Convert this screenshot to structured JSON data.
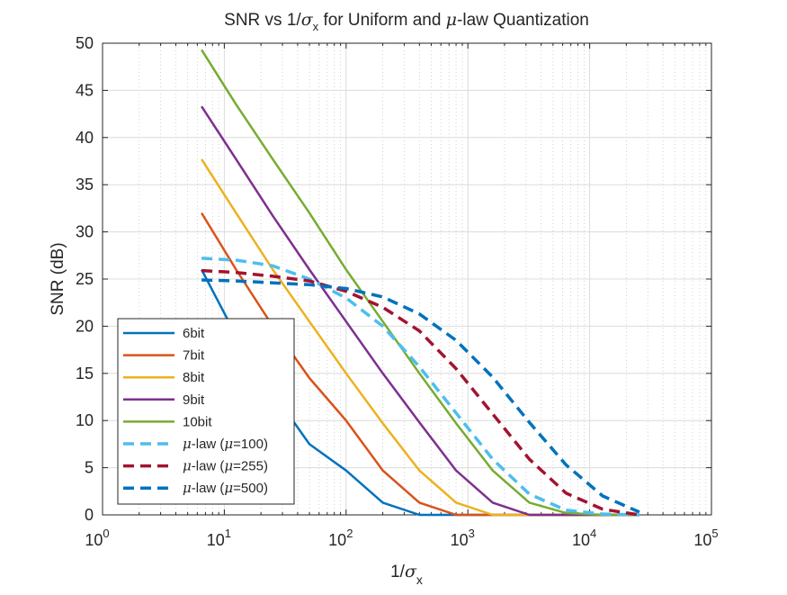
{
  "chart_data": {
    "type": "line",
    "title_parts": {
      "pre": "SNR vs 1/",
      "sigma": "σ",
      "sub": "x",
      "mid": " for Uniform and ",
      "mu": "μ",
      "post": "-law Quantization"
    },
    "xlabel_parts": {
      "pre": "1/",
      "sigma": "σ",
      "sub": "x"
    },
    "ylabel": "SNR (dB)",
    "xscale": "log",
    "xlim": [
      1,
      100000
    ],
    "ylim": [
      0,
      50
    ],
    "grid": true,
    "minor_grid": true,
    "legend_position": "lower-left",
    "x_ticks": [
      {
        "base": "10",
        "exp": "0"
      },
      {
        "base": "10",
        "exp": "1"
      },
      {
        "base": "10",
        "exp": "2"
      },
      {
        "base": "10",
        "exp": "3"
      },
      {
        "base": "10",
        "exp": "4"
      },
      {
        "base": "10",
        "exp": "5"
      }
    ],
    "y_ticks": [
      "0",
      "5",
      "10",
      "15",
      "20",
      "25",
      "30",
      "35",
      "40",
      "45",
      "50"
    ],
    "series": [
      {
        "label": "6bit",
        "color": "#0072BD",
        "dashed": false,
        "x": [
          6.5,
          12.5,
          25,
          50,
          100,
          200,
          400,
          800,
          1600,
          3200,
          6400,
          12800,
          25600
        ],
        "y": [
          26.0,
          19.0,
          13.0,
          7.5,
          4.7,
          1.3,
          0,
          0,
          0,
          0,
          0,
          0,
          0
        ]
      },
      {
        "label": "7bit",
        "color": "#D95319",
        "dashed": false,
        "x": [
          6.5,
          12.5,
          25,
          50,
          100,
          200,
          400,
          800,
          1600,
          3200,
          6400,
          12800,
          25600
        ],
        "y": [
          32.0,
          26.0,
          20.0,
          14.5,
          10.0,
          4.7,
          1.3,
          0,
          0,
          0,
          0,
          0,
          0
        ]
      },
      {
        "label": "8bit",
        "color": "#EDB120",
        "dashed": false,
        "x": [
          6.5,
          12.5,
          25,
          50,
          100,
          200,
          400,
          800,
          1600,
          3200,
          6400,
          12800,
          25600
        ],
        "y": [
          37.7,
          32.0,
          26.0,
          20.5,
          15.0,
          9.7,
          4.7,
          1.3,
          0,
          0,
          0,
          0,
          0
        ]
      },
      {
        "label": "9bit",
        "color": "#7E2F8E",
        "dashed": false,
        "x": [
          6.5,
          12.5,
          25,
          50,
          100,
          200,
          400,
          800,
          1600,
          3200,
          6400,
          12800,
          25600
        ],
        "y": [
          43.3,
          37.7,
          31.7,
          26.0,
          20.5,
          15.0,
          9.8,
          4.7,
          1.3,
          0,
          0,
          0,
          0
        ]
      },
      {
        "label": "10bit",
        "color": "#77AC30",
        "dashed": false,
        "x": [
          6.5,
          12.5,
          25,
          50,
          100,
          200,
          400,
          800,
          1600,
          3200,
          6400,
          12800,
          25600
        ],
        "y": [
          49.3,
          43.5,
          37.7,
          32.0,
          26.0,
          20.5,
          15.0,
          9.7,
          4.7,
          1.3,
          0.2,
          0,
          0
        ]
      },
      {
        "label": "μ-law (μ=100)",
        "label_pre": "-law (",
        "label_post": "=100)",
        "color": "#4DBEEE",
        "dashed": true,
        "x": [
          6.5,
          12.5,
          25,
          50,
          100,
          200,
          400,
          800,
          1600,
          3200,
          6400,
          12800,
          25600
        ],
        "y": [
          27.2,
          27.0,
          26.4,
          25.0,
          23.0,
          20.0,
          15.7,
          10.8,
          5.9,
          2.2,
          0.5,
          0.1,
          0
        ]
      },
      {
        "label": "μ-law (μ=255)",
        "label_pre": "-law (",
        "label_post": "=255)",
        "color": "#A2142F",
        "dashed": true,
        "x": [
          6.5,
          12.5,
          25,
          50,
          100,
          200,
          400,
          800,
          1600,
          3200,
          6400,
          12800,
          25600
        ],
        "y": [
          25.9,
          25.7,
          25.3,
          24.8,
          23.7,
          22.0,
          19.5,
          15.5,
          10.7,
          5.9,
          2.3,
          0.6,
          0
        ]
      },
      {
        "label": "μ-law (μ=500)",
        "label_pre": "-law (",
        "label_post": "=500)",
        "color": "#0072BD",
        "dashed": true,
        "x": [
          6.5,
          12.5,
          25,
          50,
          100,
          200,
          400,
          800,
          1600,
          3200,
          6400,
          12800,
          25600
        ],
        "y": [
          24.9,
          24.8,
          24.6,
          24.4,
          24.0,
          23.1,
          21.3,
          18.5,
          14.6,
          9.8,
          5.3,
          2.0,
          0.3
        ]
      }
    ]
  }
}
